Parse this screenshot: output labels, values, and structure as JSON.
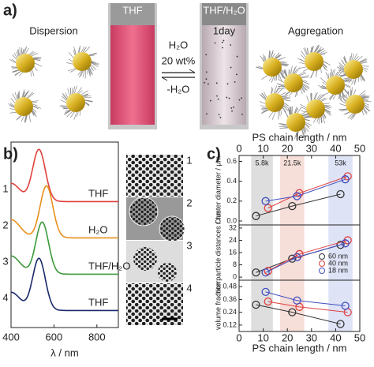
{
  "panel_a": {
    "label": "a)",
    "left": "Dispersion",
    "vial1": "THF",
    "vial2": "THF/H₂O",
    "vial2_note": "1day",
    "forward": "H₂O",
    "amount": "20 wt%",
    "reverse": "-H₂O",
    "right": "Aggregation"
  },
  "chart_data": [
    {
      "type": "spectrum",
      "panel": "b)",
      "xlabel": "λ / nm",
      "xlim": [
        400,
        900
      ],
      "xticks": [
        400,
        600,
        800
      ],
      "series": [
        {
          "name": "THF",
          "label": "1",
          "color": "#e0403c",
          "peak": 530
        },
        {
          "name": "H₂O",
          "label": "2",
          "color": "#e8901c",
          "peak": 565
        },
        {
          "name": "THF/H₂O",
          "label": "3",
          "color": "#3a9a3a",
          "peak": 545
        },
        {
          "name": "THF",
          "label": "4",
          "color": "#1a2a6a",
          "peak": 530
        }
      ]
    },
    {
      "type": "line",
      "panel": "c)",
      "ylabel": "Cluster diameter / μm",
      "xlabel": "PS chain length / nm",
      "xaxis": "top",
      "xlim": [
        0,
        50
      ],
      "xticks": [
        0,
        10,
        20,
        30,
        40,
        50
      ],
      "ylim": [
        -0.04,
        0.66
      ],
      "yticks": [
        {
          "value": 0,
          "label": "0.0"
        },
        0.2,
        0.4,
        0.6
      ],
      "bands": [
        {
          "label": "5.8k",
          "range": [
            5,
            14
          ],
          "color": "#c8c8c8"
        },
        {
          "label": "21.5k",
          "range": [
            17,
            27
          ],
          "color": "#f0c8c0"
        },
        {
          "label": "53k",
          "range": [
            37,
            47
          ],
          "color": "#c8d0f0"
        }
      ],
      "series": [
        {
          "name": "60 nm",
          "color": "#333333",
          "x": [
            7,
            22,
            42
          ],
          "values": [
            0.05,
            0.15,
            0.27
          ]
        },
        {
          "name": "40 nm",
          "color": "#e04040",
          "x": [
            12,
            25,
            45
          ],
          "values": [
            0.13,
            0.28,
            0.45
          ]
        },
        {
          "name": "18 nm",
          "color": "#4050c0",
          "x": [
            11,
            24,
            44
          ],
          "values": [
            0.2,
            0.25,
            0.42
          ]
        }
      ]
    },
    {
      "type": "line",
      "ylabel": "Interparticle distances / nm",
      "legend": "right",
      "xlim": [
        0,
        50
      ],
      "ylim": [
        -2,
        34
      ],
      "yticks": [
        0,
        8,
        16,
        24,
        32
      ],
      "series": [
        {
          "name": "60 nm",
          "color": "#333333",
          "x": [
            7,
            22,
            42
          ],
          "values": [
            3,
            12,
            21
          ]
        },
        {
          "name": "40 nm",
          "color": "#e04040",
          "x": [
            12,
            25,
            45
          ],
          "values": [
            4,
            15,
            24
          ]
        },
        {
          "name": "18 nm",
          "color": "#4050c0",
          "x": [
            11,
            24,
            44
          ],
          "values": [
            3,
            13,
            22
          ]
        }
      ]
    },
    {
      "type": "line",
      "ylabel": "volume fraction",
      "xlabel": "PS chain length / nm",
      "xaxis": "bottom",
      "xlim": [
        0,
        50
      ],
      "xticks": [
        0,
        10,
        20,
        30,
        40,
        50
      ],
      "ylim": [
        0.06,
        0.54
      ],
      "yticks": [
        0.12,
        0.24,
        0.36,
        0.48
      ],
      "series": [
        {
          "name": "60 nm",
          "color": "#333333",
          "x": [
            7,
            22,
            42
          ],
          "values": [
            0.31,
            0.24,
            0.13
          ]
        },
        {
          "name": "40 nm",
          "color": "#e04040",
          "x": [
            12,
            25,
            45
          ],
          "values": [
            0.34,
            0.29,
            0.24
          ]
        },
        {
          "name": "18 nm",
          "color": "#4050c0",
          "x": [
            11,
            24,
            44
          ],
          "values": [
            0.43,
            0.35,
            0.3
          ]
        }
      ]
    }
  ]
}
